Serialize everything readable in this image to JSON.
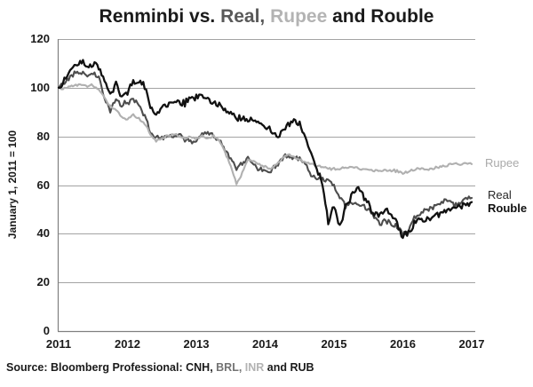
{
  "title": {
    "full_text": "Renminbi vs. Real, Rupee and Rouble",
    "segments": [
      {
        "text": "Renminbi vs. ",
        "color": "#1a1a1a"
      },
      {
        "text": "Real,",
        "color": "#595959"
      },
      {
        "text": " ",
        "color": "#1a1a1a"
      },
      {
        "text": "Rupee",
        "color": "#b3b3b3"
      },
      {
        "text": " and Rouble",
        "color": "#1a1a1a"
      }
    ]
  },
  "source": {
    "segments": [
      {
        "text": "Source: Bloomberg Professional:  CNH, ",
        "color": "#1a1a1a"
      },
      {
        "text": "BRL, ",
        "color": "#737373"
      },
      {
        "text": "INR ",
        "color": "#b3b3b3"
      },
      {
        "text": "and RUB",
        "color": "#1a1a1a"
      }
    ]
  },
  "series_labels": [
    {
      "text": "Rupee",
      "color": "#a9a9a9",
      "bold": false
    },
    {
      "text": "Real",
      "color": "#262626",
      "bold": false
    },
    {
      "text": "Rouble",
      "color": "#111111",
      "bold": true
    }
  ],
  "chart_data": {
    "type": "line",
    "title": "Renminbi vs. Real, Rupee and Rouble",
    "xlabel": "",
    "ylabel": "January 1, 2011 = 100",
    "ylim": [
      0,
      120
    ],
    "y_ticks": [
      0,
      20,
      40,
      60,
      80,
      100,
      120
    ],
    "x_tick_labels": [
      "2011",
      "2012",
      "2013",
      "2014",
      "2015",
      "2016",
      "2017"
    ],
    "x_unit": "month",
    "x_start": "2011-01",
    "x_end": "2017-01",
    "grid": "horizontal",
    "legend_position": "right-of-plot",
    "series": [
      {
        "name": "Real",
        "code": "BRL",
        "color": "#4d4d4d",
        "values": [
          100,
          101.5,
          104,
          106,
          105.5,
          105,
          106.5,
          104,
          96,
          90.5,
          95,
          93,
          94,
          94.8,
          92.5,
          89,
          81,
          79.5,
          79.5,
          80,
          80.5,
          80.6,
          78.5,
          78.5,
          77.7,
          81,
          81.5,
          80.5,
          79,
          74,
          71,
          66.8,
          69,
          71.5,
          69,
          66.5,
          66,
          65.5,
          68,
          71,
          72,
          71.5,
          70.5,
          68.5,
          64.5,
          63,
          62.5,
          62,
          59,
          55.5,
          51,
          52.5,
          53,
          51.5,
          50,
          46.5,
          44.5,
          45.5,
          44,
          43.5,
          39.5,
          41.5,
          46.5,
          48.5,
          49.5,
          51,
          52.2,
          53.5,
          54,
          51.5,
          53,
          54.5,
          54.7
        ]
      },
      {
        "name": "Rupee",
        "code": "INR",
        "color": "#b0b0b0",
        "values": [
          100,
          99.5,
          100.5,
          101,
          101.3,
          100.8,
          101,
          99.5,
          95.5,
          92.5,
          91,
          87.6,
          87,
          88.7,
          87.5,
          85.5,
          80.5,
          77.8,
          79.5,
          80,
          81,
          80.2,
          79.5,
          79.8,
          78.4,
          80.5,
          79.5,
          80,
          78.5,
          73.5,
          68,
          60.5,
          65,
          71,
          69.5,
          68.5,
          67.5,
          66.8,
          68.5,
          71,
          72.3,
          71.5,
          70.5,
          69.5,
          68.5,
          68,
          67.3,
          67,
          66.5,
          66.8,
          67,
          67.2,
          67,
          66.8,
          66.3,
          65.7,
          66,
          66.3,
          66,
          65.8,
          64.9,
          65.5,
          66.3,
          66.8,
          66.5,
          66.9,
          67.4,
          67.8,
          68.3,
          69.3,
          68.2,
          68.8,
          68.6
        ]
      },
      {
        "name": "Rouble",
        "code": "RUB",
        "color": "#111111",
        "values": [
          100,
          103,
          107.5,
          109.5,
          110.5,
          109,
          110,
          108.5,
          103.5,
          97,
          101,
          96.5,
          98.5,
          102.5,
          102,
          100.5,
          92,
          89.5,
          91.5,
          92.5,
          95,
          94,
          93.5,
          95.5,
          96.5,
          97,
          95.5,
          94.5,
          93.5,
          91.5,
          90,
          88,
          87.5,
          87,
          86.5,
          85.5,
          84,
          82.5,
          79.5,
          82.5,
          85,
          86,
          85.5,
          79.5,
          73,
          67,
          60,
          45,
          51,
          43,
          51,
          55,
          58.5,
          56,
          52.5,
          47.5,
          48.5,
          49.5,
          47,
          44,
          38.5,
          40.5,
          44,
          45.5,
          46,
          47,
          47.8,
          48.5,
          49.2,
          50,
          51,
          52,
          53
        ]
      }
    ]
  },
  "colors": {
    "grid": "#a3a3a3",
    "axis": "#808080",
    "background": "#ffffff"
  }
}
